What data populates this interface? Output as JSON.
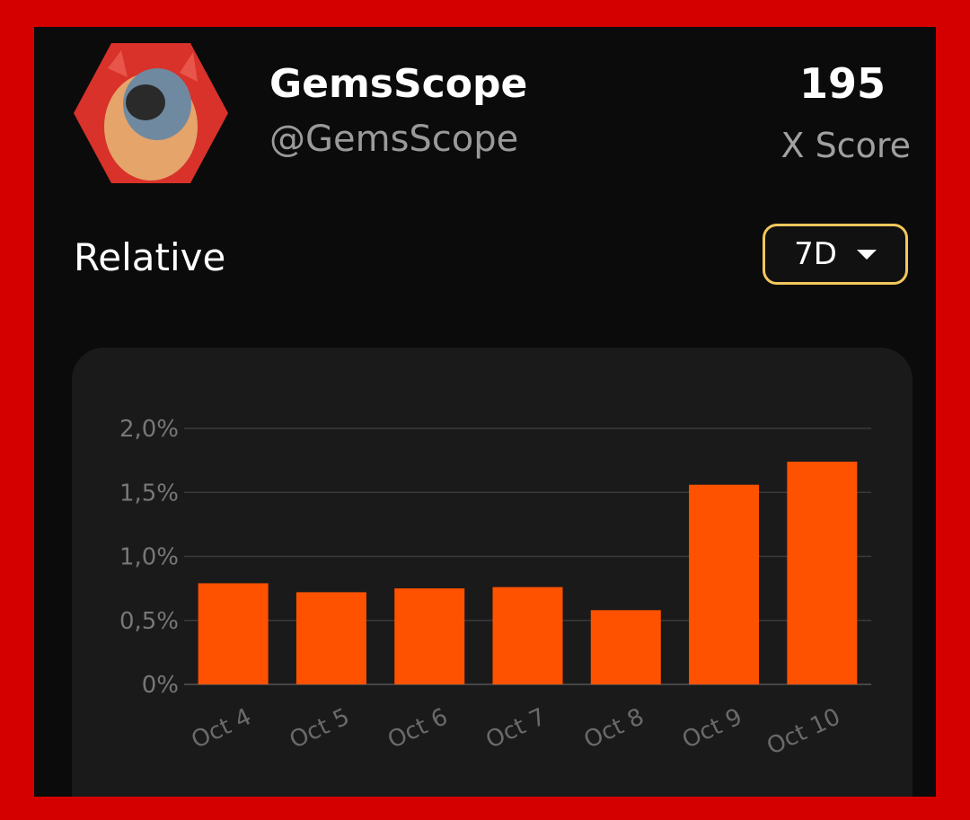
{
  "profile": {
    "name": "GemsScope",
    "handle": "@GemsScope",
    "score": "195",
    "score_label": "X Score",
    "avatar_icon": "hexagon-avatar"
  },
  "section": {
    "title": "Relative"
  },
  "period_dropdown": {
    "selected": "7D"
  },
  "colors": {
    "frame": "#d40000",
    "bar": "#ff5200",
    "dropdown_border": "#f2c75c"
  },
  "chart_data": {
    "type": "bar",
    "categories": [
      "Oct 4",
      "Oct 5",
      "Oct 6",
      "Oct 7",
      "Oct 8",
      "Oct 9",
      "Oct 10"
    ],
    "values": [
      0.79,
      0.72,
      0.75,
      0.76,
      0.58,
      1.56,
      1.74
    ],
    "unit": "%",
    "ylim": [
      0,
      2.0
    ],
    "yticks": [
      "0%",
      "0,5%",
      "1,0%",
      "1,5%",
      "2,0%"
    ],
    "grid": true,
    "title": "",
    "xlabel": "",
    "ylabel": ""
  }
}
